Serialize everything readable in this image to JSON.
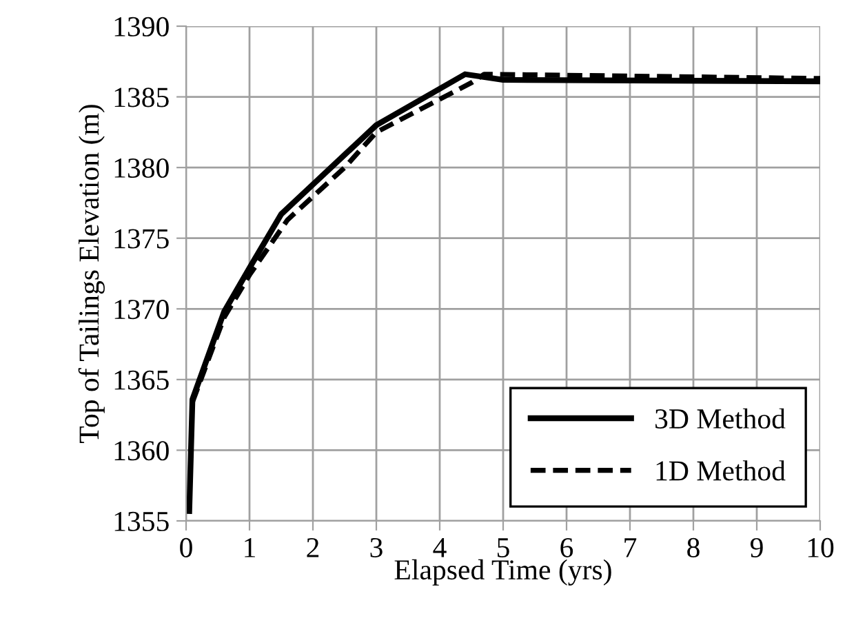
{
  "chart_data": {
    "type": "line",
    "xlabel": "Elapsed Time (yrs)",
    "ylabel": "Top of Tailings Elevation (m)",
    "xlim": [
      0,
      10
    ],
    "xticks": [
      0,
      1,
      2,
      3,
      4,
      5,
      6,
      7,
      8,
      9,
      10
    ],
    "ylim": [
      1355,
      1390
    ],
    "yticks": [
      1355,
      1360,
      1365,
      1370,
      1375,
      1380,
      1385,
      1390
    ],
    "grid": true,
    "legend": "bottom right",
    "marker": "none",
    "series": [
      {
        "name": "3D Method",
        "color": "#000000",
        "line_style": "solid",
        "x": [
          0.05,
          0.1,
          0.6,
          1.0,
          1.5,
          2.0,
          3.0,
          4.4,
          5.0,
          10.0
        ],
        "values": [
          1355.7,
          1363.6,
          1369.8,
          1372.9,
          1376.7,
          1378.8,
          1383.0,
          1386.6,
          1386.2,
          1386.1
        ]
      },
      {
        "name": "1D Method",
        "color": "#000000",
        "line_style": "dashed",
        "x": [
          0.1,
          0.6,
          1.0,
          1.6,
          2.5,
          3.0,
          4.5,
          4.7,
          10.0
        ],
        "values": [
          1363.4,
          1369.4,
          1372.4,
          1376.3,
          1380.0,
          1382.5,
          1386.0,
          1386.6,
          1386.3
        ]
      }
    ]
  }
}
